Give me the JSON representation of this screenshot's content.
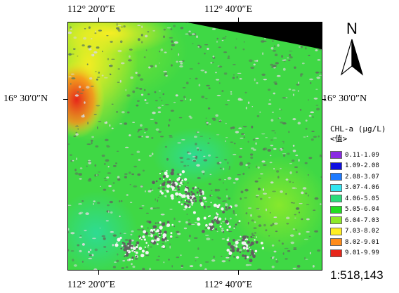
{
  "coordinates": {
    "top_left": "112° 20′0″E",
    "top_right": "112° 40′0″E",
    "bottom_left": "112° 20′0″E",
    "bottom_right": "112° 40′0″E",
    "left_lat": "16° 30′0″N",
    "right_lat": "16° 30′0″N"
  },
  "north_arrow": {
    "label": "N"
  },
  "legend": {
    "title": "CHL-a (μg/L)",
    "subtitle": "<值>",
    "items": [
      {
        "label": "0.11-1.09",
        "color": "#8a2be2"
      },
      {
        "label": "1.09-2.08",
        "color": "#1010e0"
      },
      {
        "label": "2.08-3.07",
        "color": "#1e7bff"
      },
      {
        "label": "3.07-4.06",
        "color": "#33e6f0"
      },
      {
        "label": "4.06-5.05",
        "color": "#2bdc7a"
      },
      {
        "label": "5.05-6.04",
        "color": "#22dd22"
      },
      {
        "label": "6.04-7.03",
        "color": "#8eea2a"
      },
      {
        "label": "7.03-8.02",
        "color": "#ffee22"
      },
      {
        "label": "8.02-9.01",
        "color": "#ff8c1a"
      },
      {
        "label": "9.01-9.99",
        "color": "#e6261a"
      }
    ]
  },
  "scale": {
    "label": "1:518,143"
  },
  "colors": {
    "sea_base": "#3fd845",
    "nodata": "#000000",
    "cloud": "#c8c8c8"
  }
}
